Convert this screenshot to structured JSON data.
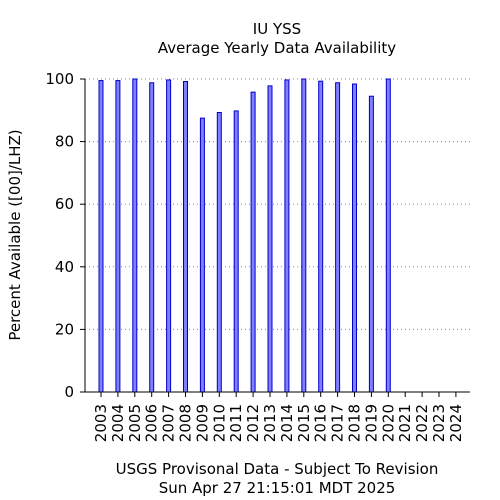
{
  "chart_data": {
    "type": "bar",
    "title": "IU YSS",
    "subtitle": "Average Yearly Data Availability",
    "ylabel": "Percent Available ([00]/LHZ)",
    "footer_line1": "USGS Provisonal Data - Subject To Revision",
    "footer_line2": "Sun Apr 27 21:15:01 MDT 2025",
    "categories": [
      "2003",
      "2004",
      "2005",
      "2006",
      "2007",
      "2008",
      "2009",
      "2010",
      "2011",
      "2012",
      "2013",
      "2014",
      "2015",
      "2016",
      "2017",
      "2018",
      "2019",
      "2020",
      "2021",
      "2022",
      "2023",
      "2024"
    ],
    "values": [
      99.5,
      99.5,
      100,
      98.8,
      99.7,
      99.2,
      87.5,
      89.3,
      89.8,
      95.8,
      97.8,
      99.7,
      100,
      99.3,
      98.8,
      98.4,
      94.5,
      100,
      0,
      0,
      0,
      0
    ],
    "yticks": [
      "0",
      "20",
      "40",
      "60",
      "80",
      "100"
    ],
    "ylim": [
      0,
      100
    ],
    "grid": true,
    "bar_fill": "#7f7fff",
    "bar_stroke": "#0000cc"
  }
}
